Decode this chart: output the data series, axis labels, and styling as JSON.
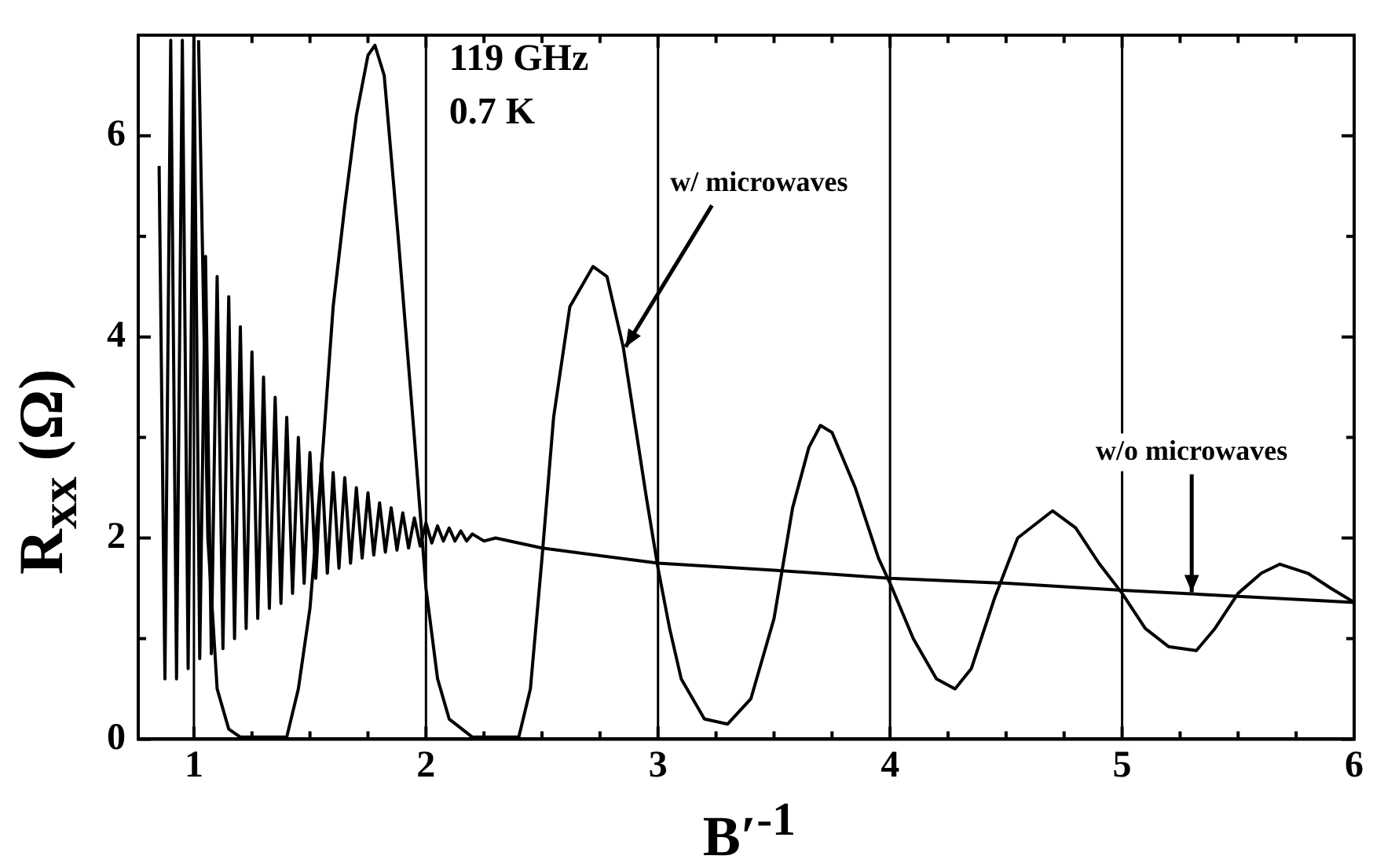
{
  "chart_data": {
    "type": "line",
    "xlabel": "B′$^{-1}$",
    "ylabel": "R$_{xx}$ (Ω)",
    "annotations": [
      "119 GHz",
      "0.7 K",
      {
        "text": "w/ microwaves",
        "x": 2.86,
        "y": 3.9
      },
      {
        "text": "w/o microwaves",
        "x": 5.3,
        "y": 1.46
      }
    ],
    "xlim": [
      0.76,
      6
    ],
    "ylim": [
      0,
      7
    ],
    "xticks": [
      1,
      {
        "value": 1.25,
        "label": null
      },
      {
        "value": 1.5,
        "label": null
      },
      {
        "value": 1.75,
        "label": null
      },
      2,
      {
        "value": 2.25,
        "label": null
      },
      {
        "value": 2.5,
        "label": null
      },
      {
        "value": 2.75,
        "label": null
      },
      3,
      {
        "value": 3.25,
        "label": null
      },
      {
        "value": 3.5,
        "label": null
      },
      {
        "value": 3.75,
        "label": null
      },
      4,
      {
        "value": 4.25,
        "label": null
      },
      {
        "value": 4.5,
        "label": null
      },
      {
        "value": 4.75,
        "label": null
      },
      5,
      {
        "value": 5.25,
        "label": null
      },
      {
        "value": 5.5,
        "label": null
      },
      {
        "value": 5.75,
        "label": null
      },
      6
    ],
    "yticks": [
      0,
      {
        "value": 1,
        "label": null
      },
      2,
      {
        "value": 3,
        "label": null
      },
      4,
      {
        "value": 5,
        "label": null
      },
      6
    ],
    "grid": false,
    "legend": false,
    "marker": "none",
    "line_style": "solid",
    "ref_lines": [
      {
        "axis": "x",
        "value": 1,
        "color": "#000000"
      },
      {
        "axis": "x",
        "value": 2,
        "color": "#000000"
      },
      {
        "axis": "x",
        "value": 3,
        "color": "#000000"
      },
      {
        "axis": "x",
        "value": 4,
        "color": "#000000"
      },
      {
        "axis": "x",
        "value": 5,
        "color": "#000000"
      }
    ],
    "series": [
      {
        "color": "#000000",
        "x": [
          1.02,
          1.06,
          1.1,
          1.15,
          1.2,
          1.4,
          1.45,
          1.5,
          1.55,
          1.6,
          1.65,
          1.7,
          1.75,
          1.78,
          1.82,
          1.88,
          1.95,
          2.0,
          2.05,
          2.1,
          2.2,
          2.4,
          2.45,
          2.5,
          2.55,
          2.62,
          2.72,
          2.78,
          2.85,
          2.95,
          3.0,
          3.05,
          3.1,
          3.2,
          3.3,
          3.4,
          3.5,
          3.58,
          3.65,
          3.7,
          3.75,
          3.85,
          3.95,
          4.0,
          4.1,
          4.2,
          4.28,
          4.35,
          4.45,
          4.55,
          4.7,
          4.8,
          4.9,
          5.0,
          5.1,
          5.2,
          5.32,
          5.4,
          5.5,
          5.6,
          5.68,
          5.8,
          5.9,
          6.0
        ],
        "values": [
          6.95,
          2,
          0.5,
          0.1,
          0.02,
          0.02,
          0.5,
          1.3,
          2.7,
          4.3,
          5.3,
          6.2,
          6.8,
          6.9,
          6.6,
          5.0,
          3.0,
          1.5,
          0.6,
          0.2,
          0.02,
          0.02,
          0.5,
          1.8,
          3.2,
          4.3,
          4.7,
          4.6,
          3.9,
          2.4,
          1.7,
          1.1,
          0.6,
          0.2,
          0.15,
          0.4,
          1.2,
          2.3,
          2.9,
          3.12,
          3.05,
          2.5,
          1.8,
          1.55,
          1.0,
          0.6,
          0.5,
          0.7,
          1.4,
          2.0,
          2.27,
          2.1,
          1.75,
          1.45,
          1.1,
          0.92,
          0.88,
          1.1,
          1.45,
          1.65,
          1.74,
          1.65,
          1.5,
          1.36
        ]
      },
      {
        "color": "#000000",
        "x": [
          0.85,
          0.875,
          0.9,
          0.925,
          0.95,
          0.975,
          1.0,
          1.025,
          1.05,
          1.075,
          1.1,
          1.125,
          1.15,
          1.175,
          1.2,
          1.225,
          1.25,
          1.275,
          1.3,
          1.325,
          1.35,
          1.375,
          1.4,
          1.425,
          1.45,
          1.475,
          1.5,
          1.525,
          1.55,
          1.575,
          1.6,
          1.625,
          1.65,
          1.675,
          1.7,
          1.725,
          1.75,
          1.775,
          1.8,
          1.825,
          1.85,
          1.875,
          1.9,
          1.925,
          1.95,
          1.975,
          2.0,
          2.025,
          2.05,
          2.075,
          2.1,
          2.125,
          2.15,
          2.175,
          2.2,
          2.25,
          2.3,
          2.5,
          3.0,
          3.5,
          4.0,
          4.5,
          5.0,
          5.5,
          6.0
        ],
        "values": [
          5.7,
          0.6,
          6.95,
          0.6,
          6.95,
          0.7,
          6.95,
          0.8,
          4.8,
          0.85,
          4.6,
          0.9,
          4.4,
          1.0,
          4.1,
          1.1,
          3.85,
          1.2,
          3.6,
          1.3,
          3.4,
          1.35,
          3.2,
          1.45,
          3.0,
          1.55,
          2.85,
          1.6,
          2.75,
          1.65,
          2.65,
          1.7,
          2.6,
          1.75,
          2.5,
          1.8,
          2.45,
          1.83,
          2.35,
          1.86,
          2.3,
          1.88,
          2.25,
          1.9,
          2.2,
          1.92,
          2.15,
          1.95,
          2.12,
          1.97,
          2.1,
          1.97,
          2.07,
          1.97,
          2.04,
          1.97,
          2.0,
          1.9,
          1.75,
          1.68,
          1.6,
          1.55,
          1.48,
          1.42,
          1.36
        ]
      }
    ]
  }
}
